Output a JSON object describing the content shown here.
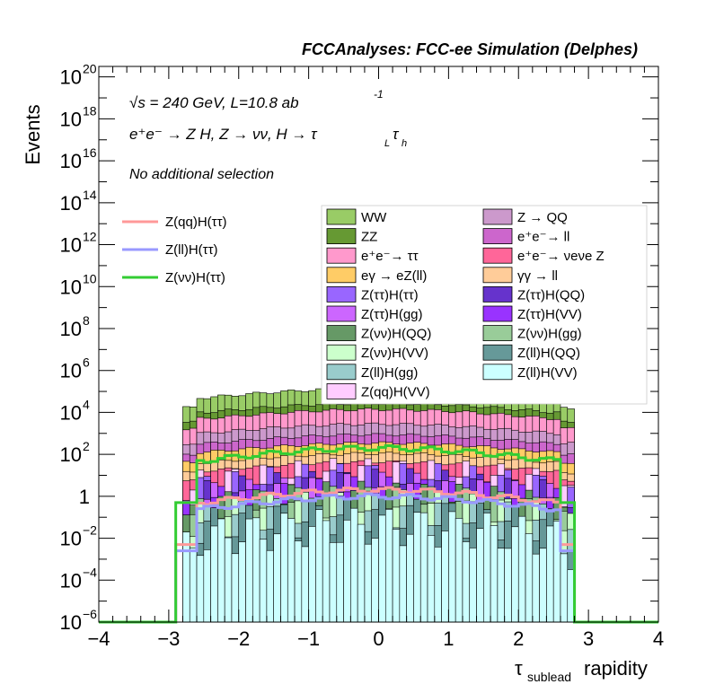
{
  "chart_data": {
    "type": "bar",
    "stacked": true,
    "headline": "FCCAnalyses: FCC-ee Simulation (Delphes)",
    "annotations": {
      "energy": "√s = 240 GeV, L=10.8 ab",
      "energy_exp": "-1",
      "process": "e⁺e⁻ → Z H, Z → νν, H → τ",
      "process_sub1": "L",
      "process_tau": "τ",
      "process_sub2": "h",
      "selection": "No additional selection"
    },
    "xlabel_main": "τ",
    "xlabel_sub": "sublead",
    "xlabel_rest": "rapidity",
    "ylabel": "Events",
    "xlim": [
      -4,
      4
    ],
    "ylim_log10": [
      -6,
      20.5
    ],
    "y_scale": "log",
    "x_ticks": [
      "−4",
      "−3",
      "−2",
      "−1",
      "0",
      "1",
      "2",
      "3",
      "4"
    ],
    "y_ticks": [
      {
        "base": "10",
        "exp": "−6",
        "v": -6
      },
      {
        "base": "10",
        "exp": "−4",
        "v": -4
      },
      {
        "base": "10",
        "exp": "−2",
        "v": -2
      },
      {
        "base": "1",
        "exp": "",
        "v": 0
      },
      {
        "base": "10",
        "exp": "2",
        "v": 2
      },
      {
        "base": "10",
        "exp": "4",
        "v": 4
      },
      {
        "base": "10",
        "exp": "6",
        "v": 6
      },
      {
        "base": "10",
        "exp": "8",
        "v": 8
      },
      {
        "base": "10",
        "exp": "10",
        "v": 10
      },
      {
        "base": "10",
        "exp": "12",
        "v": 12
      },
      {
        "base": "10",
        "exp": "14",
        "v": 14
      },
      {
        "base": "10",
        "exp": "16",
        "v": 16
      },
      {
        "base": "10",
        "exp": "18",
        "v": 18
      },
      {
        "base": "10",
        "exp": "20",
        "v": 20
      }
    ],
    "stack_layers_log10_cumulative": [
      {
        "name": "Z(ll)H(VV)",
        "color": "#ccffff",
        "top": -2.0
      },
      {
        "name": "Z(ll)H(QQ)",
        "color": "#669999",
        "top": -1.5
      },
      {
        "name": "Z(ll)H(gg)",
        "color": "#99cccc",
        "top": -1.3
      },
      {
        "name": "Z(νν)H(VV)",
        "color": "#ccffcc",
        "top": -1.1
      },
      {
        "name": "Z(νν)H(gg)",
        "color": "#99cc99",
        "top": -0.9
      },
      {
        "name": "Z(νν)H(QQ)",
        "color": "#669966",
        "top": -0.7
      },
      {
        "name": "Z(ττ)H(VV)",
        "color": "#9933ff",
        "top": -0.5
      },
      {
        "name": "Z(ττ)H(gg)",
        "color": "#cc66ff",
        "top": -0.3
      },
      {
        "name": "Z(ττ)H(QQ)",
        "color": "#6633cc",
        "top": -0.1
      },
      {
        "name": "Z(ττ)H(ττ)",
        "color": "#9966ff",
        "top": 0.2
      },
      {
        "name": "Z(qq)H(VV)",
        "color": "#ffccff",
        "top": 0.4
      },
      {
        "name": "e⁺e⁻→ νeνe Z",
        "color": "#ff6699",
        "top": 1.2
      },
      {
        "name": "γγ → ll",
        "color": "#ffcc99",
        "top": 1.6
      },
      {
        "name": "eγ → eZ(ll)",
        "color": "#ffcc66",
        "top": 2.1
      },
      {
        "name": "e⁺e⁻→ ll",
        "color": "#cc66cc",
        "top": 2.5
      },
      {
        "name": "Z → QQ",
        "color": "#cc99cc",
        "top": 3.0
      },
      {
        "name": "e⁺e⁻→ ττ",
        "color": "#ff99cc",
        "top": 3.7
      },
      {
        "name": "ZZ",
        "color": "#669933",
        "top": 4.0
      },
      {
        "name": "WW",
        "color": "#99cc66",
        "top": 4.7
      }
    ],
    "signal_lines": [
      {
        "name": "Z(qq)H(ττ)",
        "color": "#ff9999",
        "peak_log10": 0.3
      },
      {
        "name": "Z(ll)H(ττ)",
        "color": "#9999ff",
        "peak_log10": 0.0
      },
      {
        "name": "Z(νν)H(ττ)",
        "color": "#33cc33",
        "peak_log10": 2.3
      }
    ],
    "legend_left": [
      {
        "label": "Z(qq)H(ττ)",
        "color": "#ff9999"
      },
      {
        "label": "Z(ll)H(ττ)",
        "color": "#9999ff"
      },
      {
        "label": "Z(νν)H(ττ)",
        "color": "#33cc33"
      }
    ],
    "legend_right_col1": [
      {
        "label": "WW",
        "color": "#99cc66"
      },
      {
        "label": "ZZ",
        "color": "#669933"
      },
      {
        "label": "e⁺e⁻→ ττ",
        "color": "#ff99cc"
      },
      {
        "label": "eγ → eZ(ll)",
        "color": "#ffcc66"
      },
      {
        "label": "Z(ττ)H(ττ)",
        "color": "#9966ff"
      },
      {
        "label": "Z(ττ)H(gg)",
        "color": "#cc66ff"
      },
      {
        "label": "Z(νν)H(QQ)",
        "color": "#669966"
      },
      {
        "label": "Z(νν)H(VV)",
        "color": "#ccffcc"
      },
      {
        "label": "Z(ll)H(gg)",
        "color": "#99cccc"
      },
      {
        "label": "Z(qq)H(VV)",
        "color": "#ffccff"
      }
    ],
    "legend_right_col2": [
      {
        "label": "Z → QQ",
        "color": "#cc99cc"
      },
      {
        "label": "e⁺e⁻→ ll",
        "color": "#cc66cc"
      },
      {
        "label": "e⁺e⁻→ νeνe Z",
        "color": "#ff6699"
      },
      {
        "label": "γγ → ll",
        "color": "#ffcc99"
      },
      {
        "label": "Z(ττ)H(QQ)",
        "color": "#6633cc"
      },
      {
        "label": "Z(ττ)H(VV)",
        "color": "#9933ff"
      },
      {
        "label": "Z(νν)H(gg)",
        "color": "#99cc99"
      },
      {
        "label": "Z(ll)H(QQ)",
        "color": "#669999"
      },
      {
        "label": "Z(ll)H(VV)",
        "color": "#ccffff"
      }
    ]
  }
}
